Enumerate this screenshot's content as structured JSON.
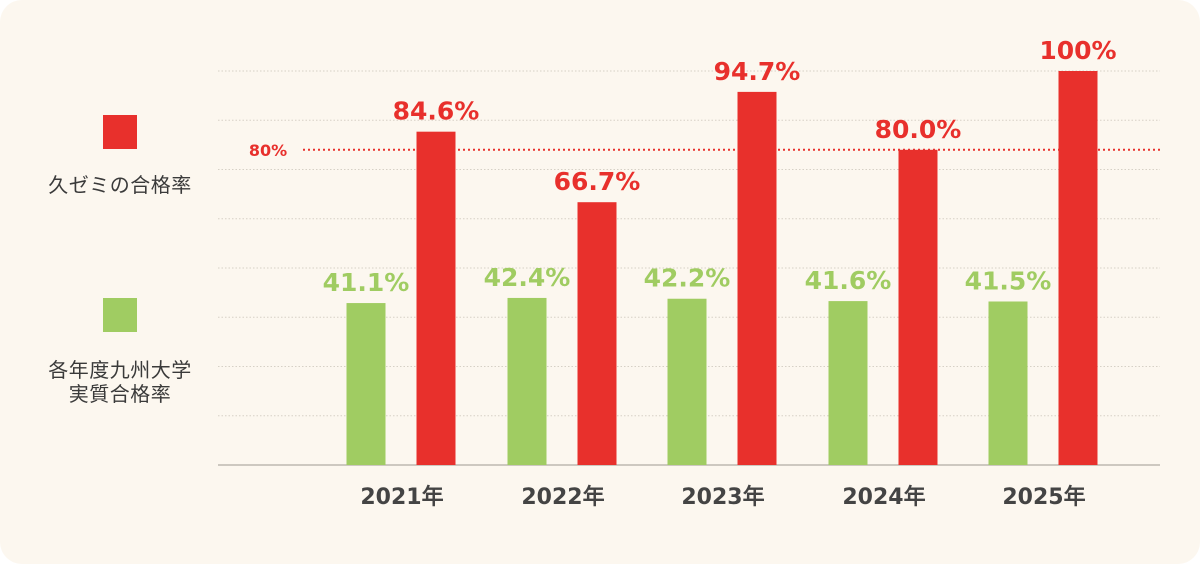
{
  "legend": {
    "series1_label": "久ゼミの合格率",
    "series2_label": "各年度九州大学\n実質合格率"
  },
  "chart_data": {
    "type": "bar",
    "categories": [
      "2021年",
      "2022年",
      "2023年",
      "2024年",
      "2025年"
    ],
    "series": [
      {
        "name": "各年度九州大学実質合格率",
        "color": "#a0cc62",
        "values": [
          41.1,
          42.4,
          42.2,
          41.6,
          41.5
        ],
        "labels": [
          "41.1%",
          "42.4%",
          "42.2%",
          "41.6%",
          "41.5%"
        ]
      },
      {
        "name": "久ゼミの合格率",
        "color": "#e8302c",
        "values": [
          84.6,
          66.7,
          94.7,
          80.0,
          100
        ],
        "labels": [
          "84.6%",
          "66.7%",
          "94.7%",
          "80.0%",
          "100%"
        ]
      }
    ],
    "reference_line": {
      "value": 80,
      "label": "80%",
      "color": "#e8302c",
      "style": "dotted"
    },
    "ylim": [
      0,
      100
    ],
    "grid": true,
    "legend_position": "left"
  }
}
